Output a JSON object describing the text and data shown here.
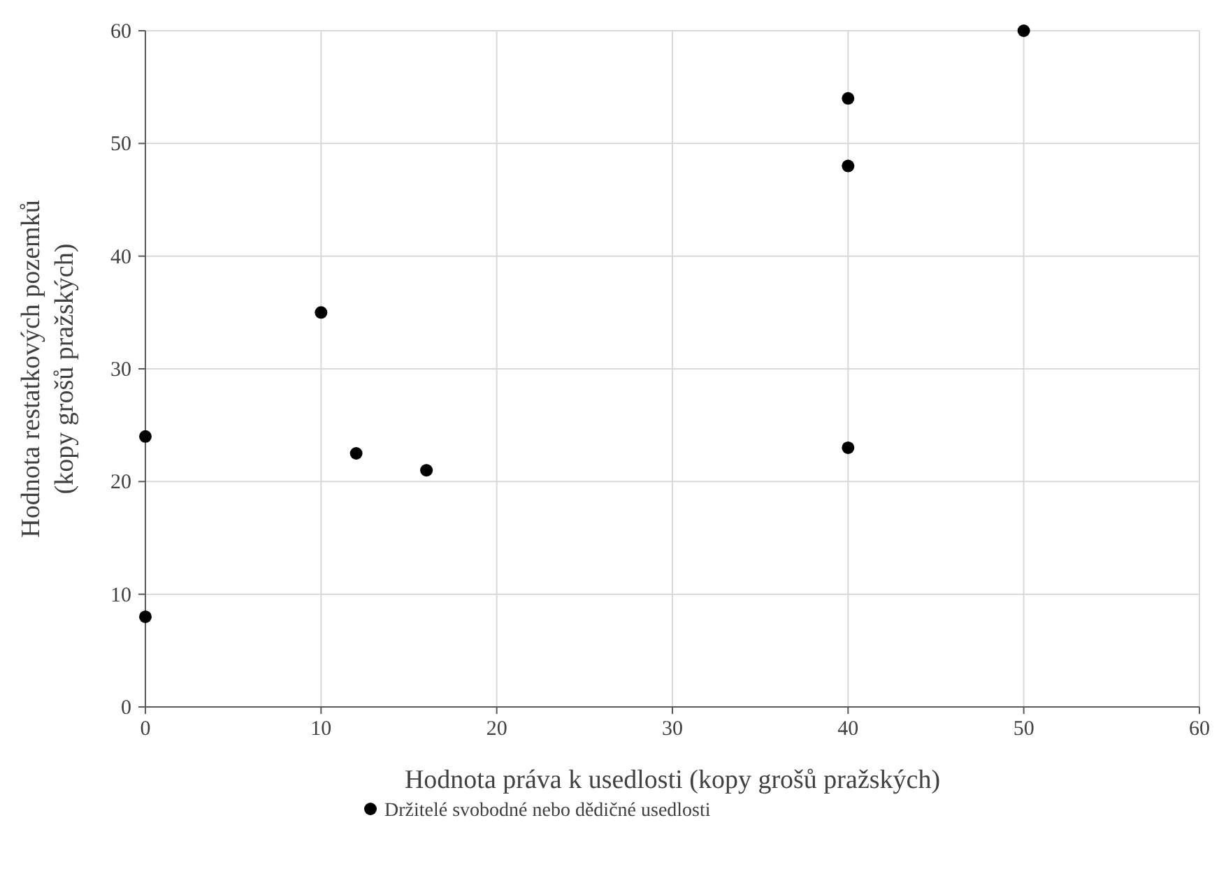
{
  "chart_data": {
    "type": "scatter",
    "xlabel": "Hodnota práva k usedlosti (kopy grošů pražských)",
    "ylabel": "Hodnota restatkových pozemků\n(kopy grošů pražských)",
    "series": [
      {
        "name": "Držitelé svobodné nebo dědičné usedlosti",
        "color": "#000000",
        "x": [
          0,
          0,
          10,
          12,
          16,
          40,
          40,
          40,
          50
        ],
        "values": [
          24,
          8,
          35,
          22.5,
          21,
          23,
          48,
          54,
          60
        ]
      }
    ],
    "xlim": [
      0,
      60
    ],
    "ylim": [
      0,
      60
    ],
    "xticks": [
      0,
      10,
      20,
      30,
      40,
      50,
      60
    ],
    "yticks": [
      0,
      10,
      20,
      30,
      40,
      50,
      60
    ],
    "grid": true,
    "legend": "bottom",
    "marker": "circle"
  }
}
